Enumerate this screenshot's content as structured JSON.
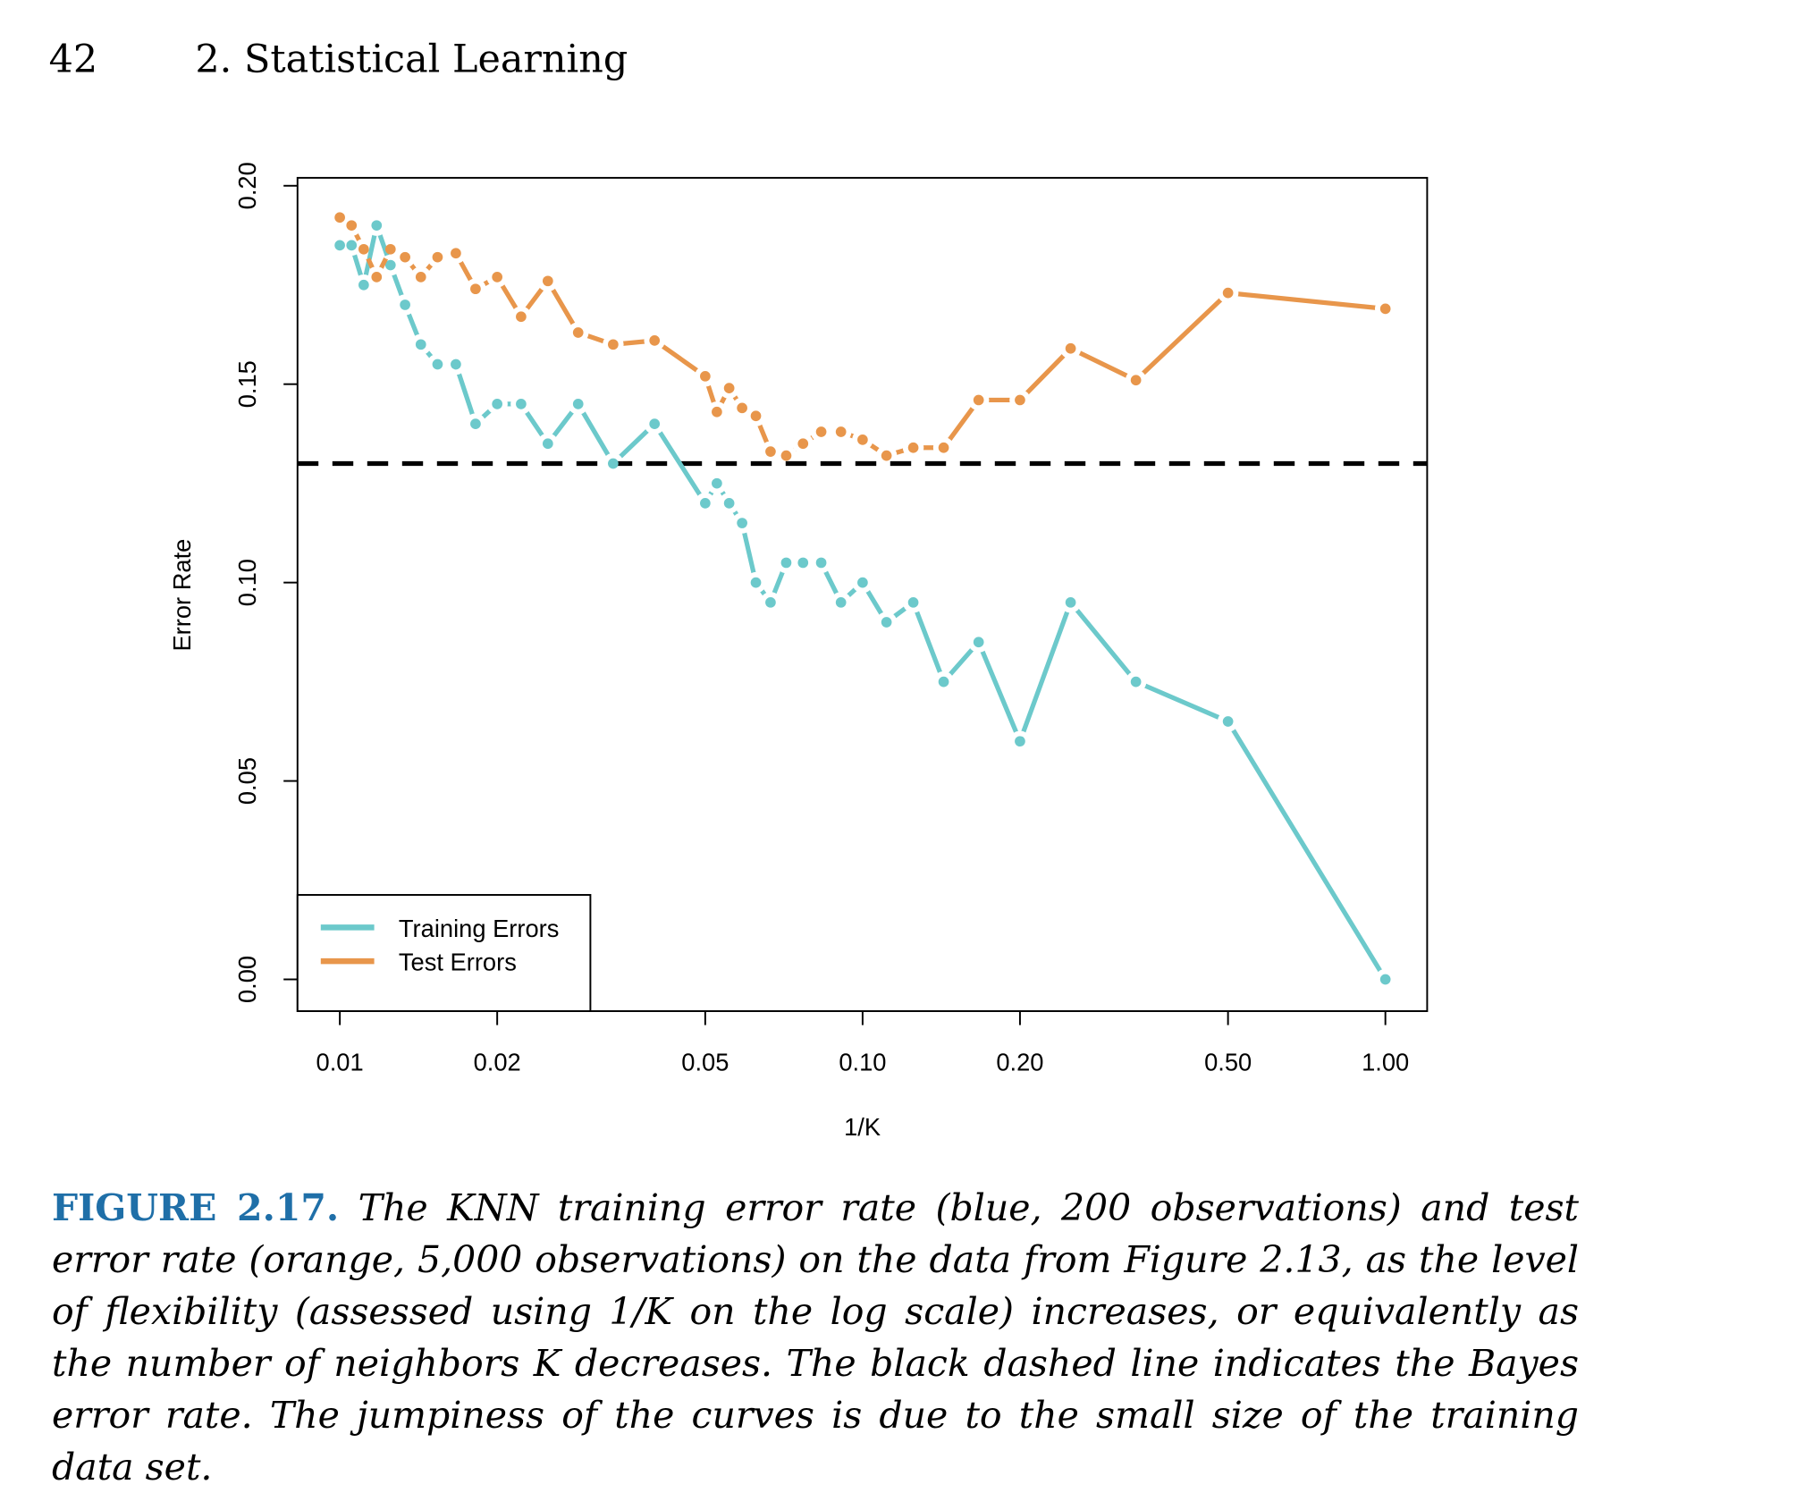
{
  "header": {
    "page_number": "42",
    "section": "2. Statistical Learning"
  },
  "chart_data": {
    "type": "line",
    "x_label": "1/K",
    "y_label": "Error Rate",
    "x": [
      0.01,
      0.01053,
      0.01111,
      0.01176,
      0.0125,
      0.01333,
      0.01429,
      0.01538,
      0.01667,
      0.01818,
      0.02,
      0.02222,
      0.025,
      0.02857,
      0.03333,
      0.04,
      0.05,
      0.05263,
      0.05556,
      0.05882,
      0.0625,
      0.06667,
      0.07143,
      0.07692,
      0.08333,
      0.09091,
      0.1,
      0.1111,
      0.125,
      0.1429,
      0.1667,
      0.2,
      0.25,
      0.3333,
      0.5,
      1
    ],
    "series": [
      {
        "name": "Training Errors",
        "color": "#6cc9cb",
        "values": [
          0.185,
          0.185,
          0.175,
          0.19,
          0.18,
          0.17,
          0.16,
          0.155,
          0.155,
          0.14,
          0.145,
          0.145,
          0.135,
          0.145,
          0.13,
          0.14,
          0.12,
          0.125,
          0.12,
          0.115,
          0.1,
          0.095,
          0.105,
          0.105,
          0.105,
          0.095,
          0.1,
          0.09,
          0.095,
          0.075,
          0.085,
          0.06,
          0.095,
          0.075,
          0.065,
          0
        ]
      },
      {
        "name": "Test Errors",
        "color": "#e8964b",
        "values": [
          0.192,
          0.19,
          0.184,
          0.177,
          0.184,
          0.182,
          0.177,
          0.182,
          0.183,
          0.174,
          0.177,
          0.167,
          0.176,
          0.163,
          0.16,
          0.161,
          0.152,
          0.143,
          0.149,
          0.144,
          0.142,
          0.133,
          0.132,
          0.135,
          0.138,
          0.138,
          0.136,
          0.132,
          0.134,
          0.134,
          0.146,
          0.146,
          0.159,
          0.151,
          0.173,
          0.169
        ]
      }
    ],
    "reference_line": {
      "value": 0.13,
      "color": "#000000"
    },
    "x_log_scale": true,
    "xlim": [
      0.0083,
      1.202
    ],
    "ylim": [
      -0.008,
      0.202
    ],
    "xticks": [
      0.01,
      0.02,
      0.05,
      {
        "value": 0.1,
        "label": "0.10"
      },
      {
        "value": 0.2,
        "label": "0.20"
      },
      {
        "value": 0.5,
        "label": "0.50"
      },
      {
        "value": 1,
        "label": "1.00"
      }
    ],
    "yticks": [
      {
        "value": 0,
        "label": "0.00"
      },
      0.05,
      {
        "value": 0.1,
        "label": "0.10"
      },
      0.15,
      {
        "value": 0.2,
        "label": "0.20"
      }
    ],
    "legend_position": "bottom-left"
  },
  "caption": {
    "label": "FIGURE 2.17.",
    "text": "The KNN training error rate (blue, 200 observations) and test error rate (orange, 5,000 observations) on the data from Figure 2.13, as the level of flexibility (assessed using 1/K on the log scale) increases, or equivalently as the number of neighbors K decreases. The black dashed line indicates the Bayes error rate. The jumpiness of the curves is due to the small size of the training data set."
  }
}
